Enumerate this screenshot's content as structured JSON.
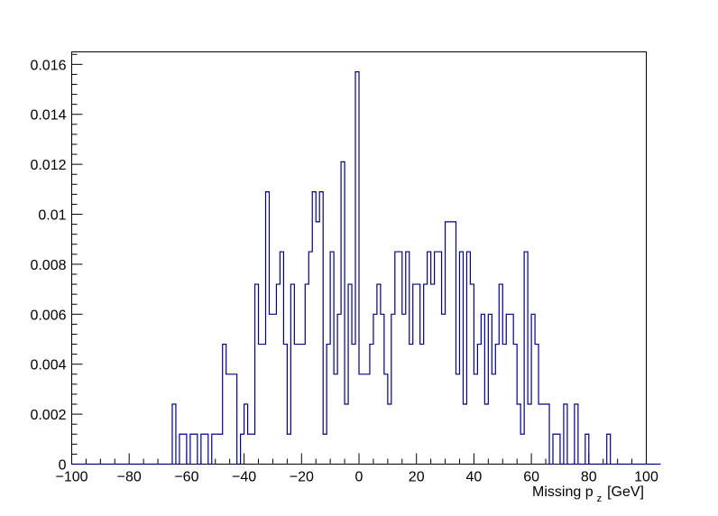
{
  "chart_data": {
    "type": "histogram",
    "title": "",
    "xlabel": {
      "main": "Missing p",
      "subscript": "z",
      "unit": "[GeV]"
    },
    "ylabel": "",
    "xlim": [
      -100,
      100
    ],
    "ylim": [
      0,
      0.0165
    ],
    "x_ticks": [
      -100,
      -80,
      -60,
      -40,
      -20,
      0,
      20,
      40,
      60,
      80,
      100
    ],
    "x_tick_labels": [
      "−100",
      "−80",
      "−60",
      "−40",
      "−20",
      "0",
      "20",
      "40",
      "60",
      "80",
      "100"
    ],
    "y_ticks": [
      0,
      0.002,
      0.004,
      0.006,
      0.008,
      0.01,
      0.012,
      0.014,
      0.016
    ],
    "y_tick_labels": [
      "0",
      "0.002",
      "0.004",
      "0.006",
      "0.008",
      "0.01",
      "0.012",
      "0.014",
      "0.016"
    ],
    "grid": false,
    "legend": "none",
    "line_color": "#000080",
    "bin_width": 1.25,
    "bin_start": -100,
    "values": [
      0,
      0,
      0,
      0,
      0,
      0,
      0,
      0,
      0,
      0,
      0,
      0,
      0,
      0,
      0,
      0,
      0,
      0,
      0,
      0,
      0,
      0,
      0,
      0,
      0,
      0,
      0,
      0,
      0.0024,
      0,
      0.0012,
      0.0012,
      0,
      0.0012,
      0.0012,
      0,
      0.0012,
      0.0012,
      0,
      0.0012,
      0.0012,
      0.0012,
      0.0048,
      0.0036,
      0.0036,
      0.0036,
      0,
      0.0012,
      0.0024,
      0.0012,
      0.0012,
      0.0072,
      0.0048,
      0.0048,
      0.0109,
      0.006,
      0.006,
      0.0072,
      0.0085,
      0.0048,
      0.0012,
      0.0072,
      0.0048,
      0.0048,
      0.0048,
      0.0072,
      0.0085,
      0.0109,
      0.0097,
      0.0109,
      0.0012,
      0.0048,
      0.0085,
      0.0036,
      0.006,
      0.0121,
      0.0024,
      0.0072,
      0.0048,
      0.0157,
      0.0036,
      0.0036,
      0.0036,
      0.0048,
      0.006,
      0.0072,
      0.006,
      0.0036,
      0.0024,
      0.006,
      0.0085,
      0.0085,
      0.006,
      0.0085,
      0.0048,
      0.0072,
      0.0072,
      0.0048,
      0.0072,
      0.0085,
      0.0072,
      0.0085,
      0.0085,
      0.006,
      0.0097,
      0.0097,
      0.0097,
      0.0036,
      0.0085,
      0.0024,
      0.0085,
      0.0072,
      0.0036,
      0.0048,
      0.006,
      0.0024,
      0.006,
      0.0036,
      0.0048,
      0.0072,
      0.0048,
      0.006,
      0.006,
      0.0048,
      0.0024,
      0.0012,
      0.0085,
      0.0024,
      0.006,
      0.0048,
      0.0024,
      0.0024,
      0.0024,
      0,
      0.0012,
      0.0012,
      0,
      0.0024,
      0,
      0,
      0.0024,
      0,
      0,
      0.0012,
      0,
      0,
      0,
      0,
      0,
      0.0012,
      0,
      0,
      0,
      0,
      0,
      0,
      0,
      0,
      0,
      0,
      0,
      0,
      0,
      0
    ]
  }
}
